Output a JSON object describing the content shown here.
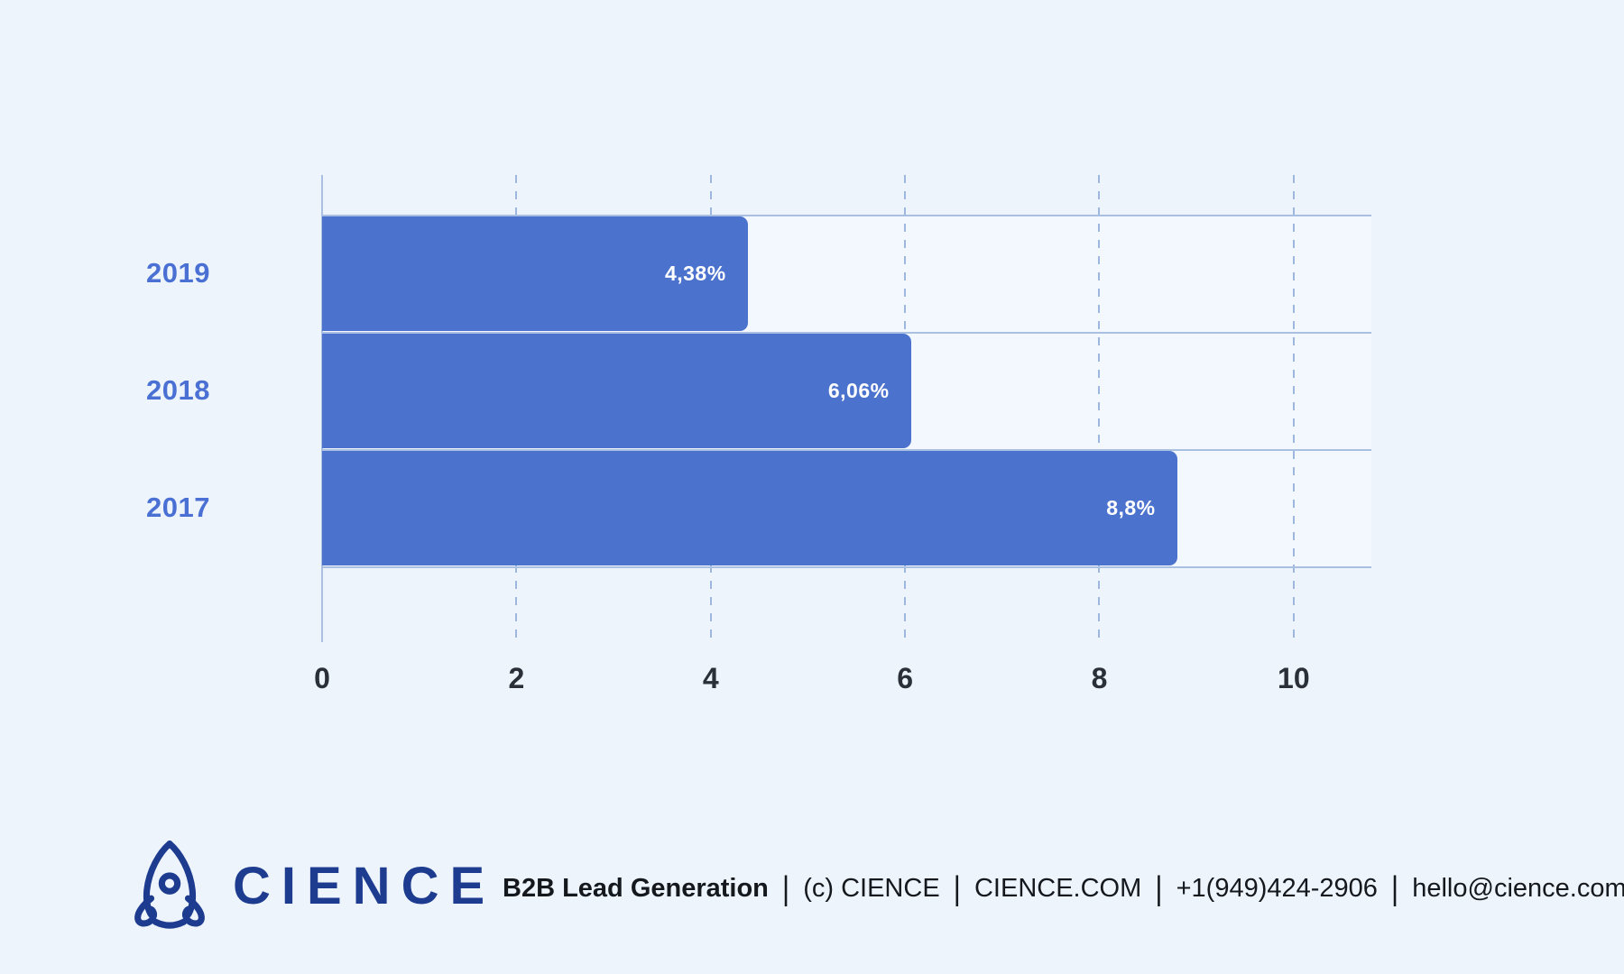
{
  "colors": {
    "page_background": "#edf4fc",
    "plot_band_background": "#f3f8fe",
    "bar": "#4b72cd",
    "gridline": "#a9c0e3",
    "dashed_gridline": "#9db7de",
    "year_label": "#4a70d4",
    "tick_label": "#2b3038",
    "logo_navy": "#1d3c90",
    "bar_value_text": "#ffffff",
    "footer_text": "#15181d"
  },
  "chart_data": {
    "type": "bar",
    "orientation": "horizontal",
    "categories": [
      "2019",
      "2018",
      "2017"
    ],
    "values": [
      4.38,
      6.06,
      8.8
    ],
    "value_labels": [
      "4,38%",
      "6,06%",
      "8,8%"
    ],
    "x_ticks": [
      0,
      2,
      4,
      6,
      8,
      10
    ],
    "xlim": [
      0,
      10.8
    ],
    "title": "",
    "xlabel": "",
    "ylabel": "",
    "grid": "vertical dashed gridlines at even ticks, horizontal solid row lines",
    "legend": "none",
    "value_label_position": "inside-bar-right",
    "bar_color": "#4b72cd"
  },
  "footer": {
    "logo_icon": "rocket-icon",
    "brand": "CIENCE",
    "separator": "|",
    "items": [
      "B2B Lead Generation",
      "(c) CIENCE",
      "CIENCE.COM",
      "+1(949)424-2906",
      "hello@cience.com"
    ]
  }
}
